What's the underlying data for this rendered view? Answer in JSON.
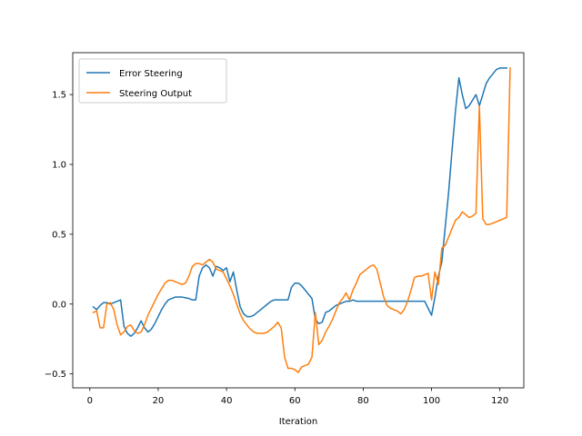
{
  "chart_data": {
    "type": "line",
    "title": "",
    "xlabel": "Iteration",
    "ylabel": "",
    "xlim": [
      -5,
      127
    ],
    "ylim": [
      -0.6,
      1.8
    ],
    "xticks": [
      0,
      20,
      40,
      60,
      80,
      100,
      120
    ],
    "yticks": [
      -0.5,
      0.0,
      0.5,
      1.0,
      1.5
    ],
    "ytick_labels": [
      "−0.5",
      "0.0",
      "0.5",
      "1.0",
      "1.5"
    ],
    "grid": false,
    "legend_position": "upper-left",
    "series": [
      {
        "name": "Error Steering",
        "color": "#1f77b4",
        "points": [
          [
            1,
            -0.02
          ],
          [
            2,
            -0.04
          ],
          [
            3,
            -0.01
          ],
          [
            4,
            0.01
          ],
          [
            5,
            0.01
          ],
          [
            6,
            0.0
          ],
          [
            7,
            0.01
          ],
          [
            8,
            0.02
          ],
          [
            9,
            0.03
          ],
          [
            10,
            -0.16
          ],
          [
            11,
            -0.21
          ],
          [
            12,
            -0.23
          ],
          [
            13,
            -0.21
          ],
          [
            14,
            -0.17
          ],
          [
            15,
            -0.12
          ],
          [
            16,
            -0.17
          ],
          [
            17,
            -0.2
          ],
          [
            18,
            -0.18
          ],
          [
            19,
            -0.14
          ],
          [
            20,
            -0.09
          ],
          [
            21,
            -0.04
          ],
          [
            22,
            0.0
          ],
          [
            23,
            0.03
          ],
          [
            24,
            0.04
          ],
          [
            25,
            0.05
          ],
          [
            26,
            0.05
          ],
          [
            27,
            0.05
          ],
          [
            28,
            0.045
          ],
          [
            29,
            0.04
          ],
          [
            30,
            0.03
          ],
          [
            31,
            0.03
          ],
          [
            32,
            0.2
          ],
          [
            33,
            0.26
          ],
          [
            34,
            0.28
          ],
          [
            35,
            0.26
          ],
          [
            36,
            0.2
          ],
          [
            37,
            0.27
          ],
          [
            38,
            0.26
          ],
          [
            39,
            0.24
          ],
          [
            40,
            0.26
          ],
          [
            41,
            0.16
          ],
          [
            42,
            0.23
          ],
          [
            43,
            0.1
          ],
          [
            44,
            -0.02
          ],
          [
            45,
            -0.07
          ],
          [
            46,
            -0.09
          ],
          [
            47,
            -0.09
          ],
          [
            48,
            -0.08
          ],
          [
            49,
            -0.06
          ],
          [
            50,
            -0.04
          ],
          [
            51,
            -0.02
          ],
          [
            52,
            0.0
          ],
          [
            53,
            0.02
          ],
          [
            54,
            0.03
          ],
          [
            55,
            0.03
          ],
          [
            56,
            0.03
          ],
          [
            57,
            0.03
          ],
          [
            58,
            0.03
          ],
          [
            59,
            0.12
          ],
          [
            60,
            0.15
          ],
          [
            61,
            0.15
          ],
          [
            62,
            0.13
          ],
          [
            63,
            0.1
          ],
          [
            64,
            0.07
          ],
          [
            65,
            0.04
          ],
          [
            66,
            -0.11
          ],
          [
            67,
            -0.14
          ],
          [
            68,
            -0.13
          ],
          [
            69,
            -0.06
          ],
          [
            70,
            -0.05
          ],
          [
            71,
            -0.03
          ],
          [
            72,
            -0.01
          ],
          [
            73,
            0.0
          ],
          [
            74,
            0.01
          ],
          [
            75,
            0.02
          ],
          [
            76,
            0.02
          ],
          [
            77,
            0.03
          ],
          [
            78,
            0.02
          ],
          [
            79,
            0.02
          ],
          [
            80,
            0.02
          ],
          [
            82,
            0.02
          ],
          [
            85,
            0.02
          ],
          [
            88,
            0.02
          ],
          [
            91,
            0.02
          ],
          [
            94,
            0.02
          ],
          [
            97,
            0.02
          ],
          [
            98,
            0.02
          ],
          [
            99,
            -0.03
          ],
          [
            100,
            -0.08
          ],
          [
            101,
            0.05
          ],
          [
            102,
            0.2
          ],
          [
            103,
            0.3
          ],
          [
            104,
            0.55
          ],
          [
            105,
            0.8
          ],
          [
            106,
            1.1
          ],
          [
            107,
            1.38
          ],
          [
            108,
            1.62
          ],
          [
            109,
            1.5
          ],
          [
            110,
            1.4
          ],
          [
            111,
            1.42
          ],
          [
            112,
            1.46
          ],
          [
            113,
            1.5
          ],
          [
            114,
            1.42
          ],
          [
            115,
            1.5
          ],
          [
            116,
            1.58
          ],
          [
            117,
            1.62
          ],
          [
            118,
            1.65
          ],
          [
            119,
            1.68
          ],
          [
            120,
            1.69
          ],
          [
            121,
            1.69
          ],
          [
            122,
            1.69
          ]
        ]
      },
      {
        "name": "Steering Output",
        "color": "#ff7f0e",
        "points": [
          [
            1,
            -0.06
          ],
          [
            2,
            -0.05
          ],
          [
            3,
            -0.17
          ],
          [
            4,
            -0.17
          ],
          [
            5,
            0.0
          ],
          [
            6,
            0.01
          ],
          [
            7,
            -0.04
          ],
          [
            8,
            -0.15
          ],
          [
            9,
            -0.22
          ],
          [
            10,
            -0.2
          ],
          [
            11,
            -0.16
          ],
          [
            12,
            -0.15
          ],
          [
            13,
            -0.19
          ],
          [
            14,
            -0.21
          ],
          [
            15,
            -0.2
          ],
          [
            16,
            -0.15
          ],
          [
            17,
            -0.08
          ],
          [
            18,
            -0.03
          ],
          [
            19,
            0.02
          ],
          [
            20,
            0.07
          ],
          [
            21,
            0.11
          ],
          [
            22,
            0.15
          ],
          [
            23,
            0.17
          ],
          [
            24,
            0.17
          ],
          [
            25,
            0.16
          ],
          [
            26,
            0.15
          ],
          [
            27,
            0.14
          ],
          [
            28,
            0.15
          ],
          [
            29,
            0.2
          ],
          [
            30,
            0.27
          ],
          [
            31,
            0.29
          ],
          [
            32,
            0.29
          ],
          [
            33,
            0.28
          ],
          [
            34,
            0.3
          ],
          [
            35,
            0.32
          ],
          [
            36,
            0.3
          ],
          [
            37,
            0.25
          ],
          [
            38,
            0.24
          ],
          [
            39,
            0.23
          ],
          [
            40,
            0.18
          ],
          [
            41,
            0.13
          ],
          [
            42,
            0.07
          ],
          [
            43,
            0.0
          ],
          [
            44,
            -0.07
          ],
          [
            45,
            -0.12
          ],
          [
            46,
            -0.15
          ],
          [
            47,
            -0.18
          ],
          [
            48,
            -0.2
          ],
          [
            49,
            -0.21
          ],
          [
            50,
            -0.21
          ],
          [
            51,
            -0.21
          ],
          [
            52,
            -0.2
          ],
          [
            53,
            -0.18
          ],
          [
            54,
            -0.16
          ],
          [
            55,
            -0.13
          ],
          [
            56,
            -0.17
          ],
          [
            57,
            -0.38
          ],
          [
            58,
            -0.46
          ],
          [
            59,
            -0.46
          ],
          [
            60,
            -0.47
          ],
          [
            61,
            -0.49
          ],
          [
            62,
            -0.45
          ],
          [
            63,
            -0.44
          ],
          [
            64,
            -0.43
          ],
          [
            65,
            -0.38
          ],
          [
            66,
            -0.06
          ],
          [
            67,
            -0.29
          ],
          [
            68,
            -0.26
          ],
          [
            69,
            -0.2
          ],
          [
            70,
            -0.16
          ],
          [
            71,
            -0.11
          ],
          [
            72,
            -0.05
          ],
          [
            73,
            0.01
          ],
          [
            74,
            0.04
          ],
          [
            75,
            0.08
          ],
          [
            76,
            0.03
          ],
          [
            77,
            0.1
          ],
          [
            78,
            0.15
          ],
          [
            79,
            0.21
          ],
          [
            80,
            0.23
          ],
          [
            81,
            0.25
          ],
          [
            82,
            0.27
          ],
          [
            83,
            0.28
          ],
          [
            84,
            0.25
          ],
          [
            85,
            0.15
          ],
          [
            86,
            0.05
          ],
          [
            87,
            -0.01
          ],
          [
            88,
            -0.03
          ],
          [
            89,
            -0.04
          ],
          [
            90,
            -0.05
          ],
          [
            91,
            -0.07
          ],
          [
            92,
            -0.04
          ],
          [
            93,
            0.02
          ],
          [
            94,
            0.1
          ],
          [
            95,
            0.19
          ],
          [
            96,
            0.2
          ],
          [
            97,
            0.2
          ],
          [
            98,
            0.21
          ],
          [
            99,
            0.22
          ],
          [
            100,
            0.03
          ],
          [
            101,
            0.23
          ],
          [
            102,
            0.14
          ],
          [
            103,
            0.4
          ],
          [
            104,
            0.42
          ],
          [
            105,
            0.48
          ],
          [
            106,
            0.54
          ],
          [
            107,
            0.6
          ],
          [
            108,
            0.62
          ],
          [
            109,
            0.66
          ],
          [
            110,
            0.64
          ],
          [
            111,
            0.62
          ],
          [
            112,
            0.63
          ],
          [
            113,
            0.65
          ],
          [
            114,
            1.42
          ],
          [
            115,
            0.61
          ],
          [
            116,
            0.57
          ],
          [
            117,
            0.57
          ],
          [
            118,
            0.58
          ],
          [
            119,
            0.59
          ],
          [
            120,
            0.6
          ],
          [
            121,
            0.61
          ],
          [
            122,
            0.62
          ],
          [
            123,
            1.69
          ]
        ]
      }
    ]
  }
}
